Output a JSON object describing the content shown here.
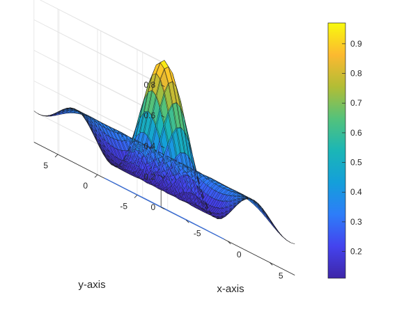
{
  "chart_data": {
    "type": "surface",
    "title": "",
    "xlabel": "x-axis",
    "ylabel": "y-axis",
    "zlabel": "",
    "xlim": [
      -8,
      8
    ],
    "ylim": [
      -8,
      8
    ],
    "zlim": [
      0,
      0.95
    ],
    "x_ticks": [
      "-5",
      "0",
      "5"
    ],
    "y_ticks": [
      "-5",
      "0",
      "5"
    ],
    "z_ticks": [
      "0",
      "0.2",
      "0.4",
      "0.6",
      "0.8"
    ],
    "surface_function": "z = sin(r)/r, r = sqrt(x^2 + y^2 + eps)",
    "grid_n": 33,
    "z_min": 0.11,
    "z_max": 0.97,
    "colormap": "parula",
    "colorbar": {
      "range": [
        0.11,
        0.97
      ],
      "ticks": [
        "0.2",
        "0.3",
        "0.4",
        "0.5",
        "0.6",
        "0.7",
        "0.8",
        "0.9"
      ]
    },
    "contour_circle": {
      "radius": 5.2,
      "color": "#3b6fd8"
    },
    "grid": true
  }
}
